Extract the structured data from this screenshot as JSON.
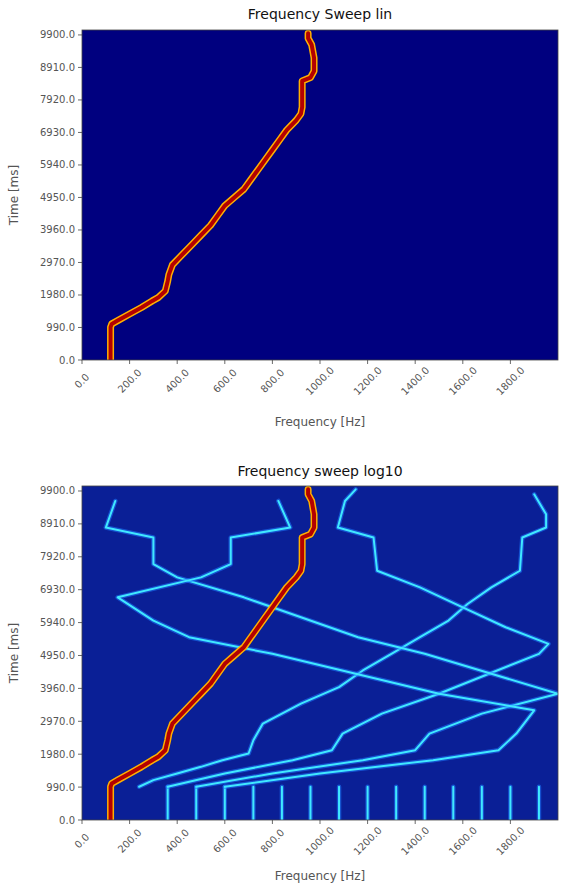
{
  "chart_data": [
    {
      "type": "line",
      "title": "Frequency Sweep lin",
      "x_label": "Frequency [Hz]",
      "y_label": "Time [ms]",
      "xlim": [
        0,
        2000
      ],
      "ylim": [
        0,
        10050
      ],
      "xticks": [
        {
          "value": 0,
          "label": "0.0"
        },
        {
          "value": 200,
          "label": "200.0"
        },
        {
          "value": 400,
          "label": "400.0"
        },
        {
          "value": 600,
          "label": "600.0"
        },
        {
          "value": 800,
          "label": "800.0"
        },
        {
          "value": 1000,
          "label": "1000.0"
        },
        {
          "value": 1200,
          "label": "1200.0"
        },
        {
          "value": 1400,
          "label": "1400.0"
        },
        {
          "value": 1600,
          "label": "1600.0"
        },
        {
          "value": 1800,
          "label": "1800.0"
        }
      ],
      "yticks": [
        {
          "value": 0,
          "label": "0.0"
        },
        {
          "value": 990,
          "label": "990.0"
        },
        {
          "value": 1980,
          "label": "1980.0"
        },
        {
          "value": 2970,
          "label": "2970.0"
        },
        {
          "value": 3960,
          "label": "3960.0"
        },
        {
          "value": 4950,
          "label": "4950.0"
        },
        {
          "value": 5940,
          "label": "5940.0"
        },
        {
          "value": 6930,
          "label": "6930.0"
        },
        {
          "value": 7920,
          "label": "7920.0"
        },
        {
          "value": 8910,
          "label": "8910.0"
        },
        {
          "value": 9900,
          "label": "9900.0"
        }
      ],
      "series": [
        {
          "color": "#b30000",
          "x": [
            120,
            120,
            125,
            150,
            200,
            250,
            295,
            320,
            350,
            360,
            365,
            380,
            420,
            460,
            500,
            540,
            570,
            600,
            640,
            680,
            710,
            740,
            770,
            800,
            830,
            860,
            900,
            920,
            925,
            925,
            960,
            975,
            975,
            965,
            950,
            950
          ],
          "values": [
            0,
            1000,
            1100,
            1200,
            1400,
            1600,
            1800,
            1900,
            2100,
            2400,
            2600,
            2900,
            3200,
            3500,
            3800,
            4100,
            4400,
            4700,
            4950,
            5200,
            5500,
            5800,
            6100,
            6400,
            6700,
            7000,
            7300,
            7500,
            7700,
            8500,
            8600,
            8800,
            9200,
            9600,
            9800,
            9950
          ]
        }
      ]
    },
    {
      "type": "line",
      "title": "Frequency sweep log10",
      "x_label": "Frequency [Hz]",
      "y_label": "Time [ms]",
      "xlim": [
        0,
        2000
      ],
      "ylim": [
        0,
        10050
      ],
      "xticks": [
        {
          "value": 0,
          "label": "0.0"
        },
        {
          "value": 200,
          "label": "200.0"
        },
        {
          "value": 400,
          "label": "400.0"
        },
        {
          "value": 600,
          "label": "600.0"
        },
        {
          "value": 800,
          "label": "800.0"
        },
        {
          "value": 1000,
          "label": "1000.0"
        },
        {
          "value": 1200,
          "label": "1200.0"
        },
        {
          "value": 1400,
          "label": "1400.0"
        },
        {
          "value": 1600,
          "label": "1600.0"
        },
        {
          "value": 1800,
          "label": "1800.0"
        }
      ],
      "yticks": [
        {
          "value": 0,
          "label": "0.0"
        },
        {
          "value": 990,
          "label": "990.0"
        },
        {
          "value": 1980,
          "label": "1980.0"
        },
        {
          "value": 2970,
          "label": "2970.0"
        },
        {
          "value": 3960,
          "label": "3960.0"
        },
        {
          "value": 4950,
          "label": "4950.0"
        },
        {
          "value": 5940,
          "label": "5940.0"
        },
        {
          "value": 6930,
          "label": "6930.0"
        },
        {
          "value": 7920,
          "label": "7920.0"
        },
        {
          "value": 8910,
          "label": "8910.0"
        },
        {
          "value": 9900,
          "label": "9900.0"
        }
      ],
      "series": [
        {
          "color": "#40e8ff",
          "x": [
            360,
            360,
            null,
            480,
            480,
            null,
            600,
            600,
            null,
            720,
            720,
            null,
            840,
            840,
            null,
            960,
            960,
            null,
            1080,
            1080,
            null,
            1200,
            1200,
            null,
            1320,
            1320,
            null,
            1440,
            1440,
            null,
            1560,
            1560,
            null,
            1680,
            1680,
            null,
            1800,
            1800,
            null,
            1920,
            1920
          ],
          "values": [
            0,
            1000,
            null,
            0,
            1000,
            null,
            0,
            1000,
            null,
            0,
            1000,
            null,
            0,
            1000,
            null,
            0,
            1000,
            null,
            0,
            1000,
            null,
            0,
            1000,
            null,
            0,
            1000,
            null,
            0,
            1000,
            null,
            0,
            1000,
            null,
            0,
            1000,
            null,
            0,
            1000,
            null,
            0,
            1000
          ]
        },
        {
          "color": "#40e8ff",
          "x": [
            240,
            300,
            400,
            500,
            590,
            700,
            720,
            760,
            920,
            1080,
            1180,
            1300,
            1420,
            1540,
            1620,
            1720,
            1840,
            1850,
            1950,
            1950,
            1900
          ],
          "values": [
            1000,
            1200,
            1400,
            1600,
            1800,
            2000,
            2400,
            2900,
            3500,
            4000,
            4500,
            5000,
            5500,
            6000,
            6500,
            7000,
            7500,
            8500,
            8800,
            9200,
            9800
          ]
        },
        {
          "color": "#40e8ff",
          "x": [
            360,
            600,
            885,
            1050,
            1095,
            1260,
            1500,
            1710,
            1920,
            1960,
            1780,
            1600,
            1420,
            1240,
            1225,
            1075,
            1105,
            1150
          ],
          "values": [
            1000,
            1400,
            1800,
            2100,
            2600,
            3200,
            3800,
            4400,
            5000,
            5300,
            5800,
            6400,
            7000,
            7500,
            8500,
            8800,
            9600,
            9950
          ]
        },
        {
          "color": "#40e8ff",
          "x": [
            480,
            800,
            1180,
            1400,
            1460,
            1680,
            2000,
            1720,
            1440,
            1160,
            920,
            680,
            400,
            300,
            300,
            100,
            140
          ],
          "values": [
            1000,
            1400,
            1800,
            2100,
            2600,
            3200,
            3800,
            4400,
            5000,
            5500,
            6100,
            6700,
            7300,
            7700,
            8500,
            8800,
            9600
          ]
        },
        {
          "color": "#40e8ff",
          "x": [
            600,
            1000,
            1475,
            1750,
            1825,
            1900,
            1500,
            1150,
            800,
            450,
            300,
            150,
            500,
            625,
            625,
            875,
            825
          ],
          "values": [
            1000,
            1400,
            1800,
            2100,
            2600,
            3300,
            3800,
            4400,
            5000,
            5500,
            6000,
            6700,
            7300,
            7700,
            8500,
            8800,
            9600
          ]
        },
        {
          "color": "#b30000",
          "x": [
            120,
            120,
            125,
            150,
            200,
            250,
            295,
            320,
            350,
            360,
            365,
            380,
            420,
            460,
            500,
            540,
            570,
            600,
            640,
            680,
            710,
            740,
            770,
            800,
            830,
            860,
            900,
            920,
            925,
            925,
            960,
            975,
            975,
            965,
            950,
            950
          ],
          "values": [
            0,
            1000,
            1100,
            1200,
            1400,
            1600,
            1800,
            1900,
            2100,
            2400,
            2600,
            2900,
            3200,
            3500,
            3800,
            4100,
            4400,
            4700,
            4950,
            5200,
            5500,
            5800,
            6100,
            6400,
            6700,
            7000,
            7300,
            7500,
            7700,
            8500,
            8600,
            8800,
            9200,
            9600,
            9800,
            9950
          ]
        }
      ]
    }
  ]
}
